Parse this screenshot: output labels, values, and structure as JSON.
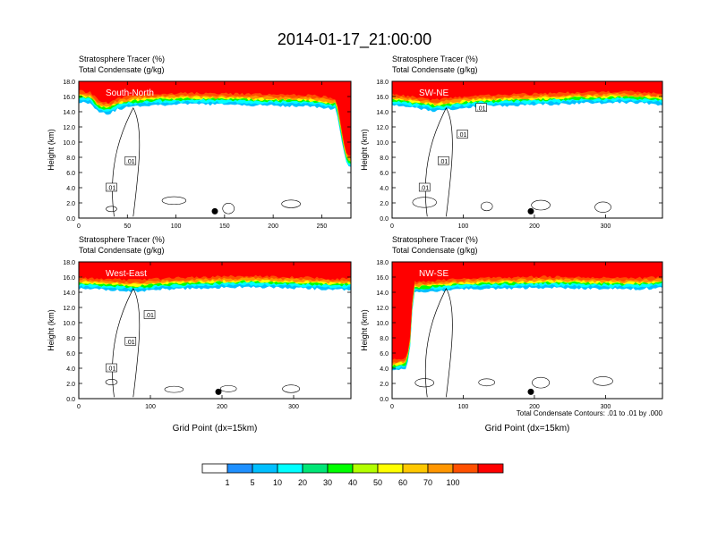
{
  "figure": {
    "title": "2014-01-17_21:00:00",
    "footnote": "Total Condensate Contours: .01 to .01 by .000"
  },
  "colorbar": {
    "labels": [
      "1",
      "5",
      "10",
      "20",
      "30",
      "40",
      "50",
      "60",
      "70",
      "100"
    ],
    "colors": [
      "#ffffff",
      "#1e90ff",
      "#00bfff",
      "#00ffff",
      "#00e676",
      "#00ff00",
      "#b3ff00",
      "#ffff00",
      "#ffc800",
      "#ff9600",
      "#ff5000",
      "#ff0000"
    ]
  },
  "chart_data": [
    {
      "type": "heatmap",
      "panel_label": "South-North",
      "title_lines": [
        "Stratosphere Tracer   (%)",
        "Total Condensate   (g/kg)"
      ],
      "ylabel": "Height (km)",
      "xlabel": "",
      "xlim": [
        0,
        280
      ],
      "ylim": [
        0,
        18
      ],
      "x_ticks": [
        "0",
        "50",
        "100",
        "150",
        "200",
        "250"
      ],
      "y_ticks": [
        "0.0",
        "2.0",
        "4.0",
        "6.0",
        "8.0",
        "10.0",
        "12.0",
        "14.0",
        "16.0",
        "18.0"
      ],
      "tropopause_km": [
        [
          0,
          16.2
        ],
        [
          12,
          16.0
        ],
        [
          20,
          15.0
        ],
        [
          30,
          14.6
        ],
        [
          40,
          15.2
        ],
        [
          55,
          15.6
        ],
        [
          80,
          15.8
        ],
        [
          120,
          15.9
        ],
        [
          160,
          15.8
        ],
        [
          200,
          15.7
        ],
        [
          240,
          15.6
        ],
        [
          265,
          15.2
        ],
        [
          272,
          10.0
        ],
        [
          276,
          7.8
        ],
        [
          280,
          7.6
        ]
      ],
      "contour_labels": [
        ".01",
        ".01"
      ],
      "marker_x": 140
    },
    {
      "type": "heatmap",
      "panel_label": "SW-NE",
      "title_lines": [
        "Stratosphere Tracer   (%)",
        "Total Condensate   (g/kg)"
      ],
      "ylabel": "Height (km)",
      "xlabel": "",
      "xlim": [
        0,
        380
      ],
      "ylim": [
        0,
        18
      ],
      "x_ticks": [
        "0",
        "100",
        "200",
        "300"
      ],
      "y_ticks": [
        "0.0",
        "2.0",
        "4.0",
        "6.0",
        "8.0",
        "10.0",
        "12.0",
        "14.0",
        "16.0",
        "18.0"
      ],
      "tropopause_km": [
        [
          0,
          15.8
        ],
        [
          30,
          15.4
        ],
        [
          60,
          15.0
        ],
        [
          90,
          15.3
        ],
        [
          120,
          15.6
        ],
        [
          160,
          15.7
        ],
        [
          200,
          15.8
        ],
        [
          260,
          16.0
        ],
        [
          320,
          16.1
        ],
        [
          360,
          16.0
        ],
        [
          380,
          15.8
        ]
      ],
      "contour_labels": [
        ".01",
        ".01",
        ".01",
        ".01"
      ],
      "marker_x": 195
    },
    {
      "type": "heatmap",
      "panel_label": "West-East",
      "title_lines": [
        "Stratosphere Tracer   (%)",
        "Total Condensate   (g/kg)"
      ],
      "ylabel": "Height (km)",
      "xlabel": "Grid Point (dx=15km)",
      "xlim": [
        0,
        380
      ],
      "ylim": [
        0,
        18
      ],
      "x_ticks": [
        "0",
        "100",
        "200",
        "300"
      ],
      "y_ticks": [
        "0.0",
        "2.0",
        "4.0",
        "6.0",
        "8.0",
        "10.0",
        "12.0",
        "14.0",
        "16.0",
        "18.0"
      ],
      "tropopause_km": [
        [
          0,
          15.4
        ],
        [
          40,
          15.2
        ],
        [
          80,
          15.0
        ],
        [
          120,
          15.3
        ],
        [
          160,
          15.4
        ],
        [
          200,
          15.5
        ],
        [
          240,
          15.6
        ],
        [
          280,
          15.5
        ],
        [
          320,
          15.4
        ],
        [
          360,
          15.2
        ],
        [
          380,
          15.3
        ]
      ],
      "contour_labels": [
        ".01",
        ".01",
        ".01"
      ],
      "marker_x": 195
    },
    {
      "type": "heatmap",
      "panel_label": "NW-SE",
      "title_lines": [
        "Stratosphere Tracer   (%)",
        "Total Condensate   (g/kg)"
      ],
      "ylabel": "Height (km)",
      "xlabel": "Grid Point (dx=15km)",
      "xlim": [
        0,
        380
      ],
      "ylim": [
        0,
        18
      ],
      "x_ticks": [
        "0",
        "100",
        "200",
        "300"
      ],
      "y_ticks": [
        "0.0",
        "2.0",
        "4.0",
        "6.0",
        "8.0",
        "10.0",
        "12.0",
        "14.0",
        "16.0",
        "18.0"
      ],
      "tropopause_km": [
        [
          0,
          4.5
        ],
        [
          20,
          4.8
        ],
        [
          25,
          7.0
        ],
        [
          30,
          14.8
        ],
        [
          60,
          15.0
        ],
        [
          100,
          15.3
        ],
        [
          160,
          15.4
        ],
        [
          220,
          15.5
        ],
        [
          280,
          15.4
        ],
        [
          340,
          15.3
        ],
        [
          380,
          15.5
        ]
      ],
      "contour_labels": [],
      "marker_x": 195
    }
  ]
}
